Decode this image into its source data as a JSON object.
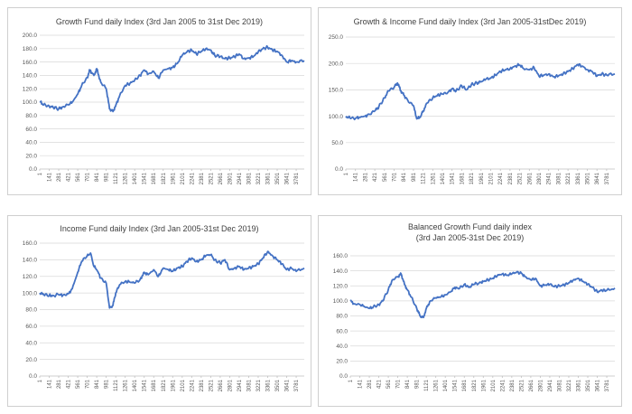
{
  "chart_data": [
    {
      "type": "line",
      "title": "Growth Fund daily Index  (3rd Jan 2005 to 31st Dec 2019)",
      "title_lines": [
        "Growth Fund daily Index  (3rd Jan 2005 to 31st Dec 2019)"
      ],
      "ylim": [
        0,
        200
      ],
      "yticks": [
        "0.0",
        "20.0",
        "40.0",
        "60.0",
        "80.0",
        "100.0",
        "120.0",
        "140.0",
        "160.0",
        "180.0",
        "200.0"
      ],
      "xticks": [
        "1",
        "141",
        "281",
        "421",
        "561",
        "701",
        "841",
        "981",
        "1121",
        "1261",
        "1401",
        "1541",
        "1681",
        "1821",
        "1961",
        "2101",
        "2241",
        "2381",
        "2521",
        "2661",
        "2801",
        "2941",
        "3081",
        "3221",
        "3361",
        "3501",
        "3641",
        "3781"
      ],
      "xlim": [
        1,
        3900
      ],
      "series_color": "#4472c4",
      "x": [
        1,
        60,
        141,
        200,
        281,
        340,
        421,
        480,
        561,
        620,
        701,
        740,
        800,
        841,
        900,
        981,
        1030,
        1080,
        1121,
        1180,
        1261,
        1330,
        1401,
        1480,
        1541,
        1600,
        1681,
        1750,
        1821,
        1900,
        1961,
        2030,
        2101,
        2170,
        2241,
        2310,
        2381,
        2450,
        2521,
        2580,
        2661,
        2730,
        2801,
        2870,
        2941,
        3010,
        3081,
        3150,
        3221,
        3290,
        3361,
        3430,
        3501,
        3570,
        3641,
        3710,
        3781,
        3900
      ],
      "y": [
        101,
        96,
        94,
        92,
        90,
        93,
        96,
        100,
        112,
        125,
        137,
        148,
        140,
        150,
        130,
        120,
        90,
        86,
        95,
        110,
        125,
        128,
        133,
        140,
        148,
        142,
        146,
        136,
        148,
        150,
        152,
        158,
        170,
        175,
        178,
        172,
        176,
        180,
        178,
        170,
        168,
        165,
        166,
        168,
        172,
        165,
        166,
        168,
        175,
        180,
        182,
        178,
        176,
        170,
        160,
        162,
        160,
        162
      ]
    },
    {
      "type": "line",
      "title": "Growth & Income Fund daily Index (3rd Jan 2005-31stDec 2019)",
      "title_lines": [
        "Growth & Income Fund daily Index (3rd Jan 2005-31stDec 2019)"
      ],
      "ylim": [
        0,
        250
      ],
      "yticks": [
        "0.0",
        "50.0",
        "100.0",
        "150.0",
        "200.0",
        "250.0"
      ],
      "xticks": [
        "1",
        "141",
        "281",
        "421",
        "561",
        "701",
        "841",
        "981",
        "1121",
        "1261",
        "1401",
        "1541",
        "1681",
        "1821",
        "1961",
        "2101",
        "2241",
        "2381",
        "2521",
        "2661",
        "2801",
        "2941",
        "3081",
        "3221",
        "3361",
        "3501",
        "3641",
        "3781"
      ],
      "xlim": [
        1,
        3900
      ],
      "series_color": "#4472c4",
      "x": [
        1,
        60,
        141,
        200,
        281,
        340,
        421,
        480,
        561,
        620,
        701,
        750,
        800,
        841,
        900,
        981,
        1030,
        1080,
        1121,
        1180,
        1261,
        1330,
        1401,
        1480,
        1541,
        1600,
        1681,
        1750,
        1821,
        1900,
        1961,
        2030,
        2101,
        2170,
        2241,
        2310,
        2381,
        2450,
        2521,
        2580,
        2661,
        2730,
        2801,
        2870,
        2941,
        3010,
        3081,
        3150,
        3221,
        3290,
        3361,
        3430,
        3501,
        3570,
        3641,
        3710,
        3781,
        3900
      ],
      "y": [
        100,
        97,
        96,
        98,
        100,
        104,
        110,
        118,
        135,
        148,
        155,
        163,
        148,
        140,
        130,
        120,
        95,
        98,
        110,
        125,
        135,
        140,
        142,
        145,
        152,
        148,
        158,
        150,
        160,
        163,
        165,
        170,
        172,
        178,
        185,
        188,
        190,
        195,
        197,
        190,
        188,
        192,
        176,
        178,
        180,
        175,
        176,
        180,
        185,
        190,
        198,
        195,
        188,
        185,
        176,
        180,
        178,
        180
      ]
    },
    {
      "type": "line",
      "title": "Income Fund daily Index (3rd Jan 2005-31st Dec 2019)",
      "title_lines": [
        "Income Fund daily Index (3rd Jan 2005-31st Dec 2019)"
      ],
      "ylim": [
        0,
        160
      ],
      "yticks": [
        "0.0",
        "20.0",
        "40.0",
        "60.0",
        "80.0",
        "100.0",
        "120.0",
        "140.0",
        "160.0"
      ],
      "xticks": [
        "1",
        "141",
        "281",
        "421",
        "561",
        "701",
        "841",
        "981",
        "1121",
        "1261",
        "1401",
        "1541",
        "1681",
        "1821",
        "1961",
        "2101",
        "2241",
        "2381",
        "2521",
        "2661",
        "2801",
        "2941",
        "3081",
        "3221",
        "3361",
        "3501",
        "3641",
        "3781"
      ],
      "xlim": [
        1,
        3900
      ],
      "series_color": "#4472c4",
      "x": [
        1,
        60,
        141,
        200,
        281,
        340,
        421,
        480,
        561,
        620,
        701,
        750,
        800,
        841,
        900,
        981,
        1030,
        1080,
        1121,
        1180,
        1261,
        1330,
        1401,
        1480,
        1541,
        1600,
        1681,
        1750,
        1821,
        1900,
        1961,
        2030,
        2101,
        2170,
        2241,
        2310,
        2381,
        2450,
        2521,
        2580,
        2661,
        2730,
        2801,
        2870,
        2941,
        3010,
        3081,
        3150,
        3221,
        3290,
        3361,
        3430,
        3501,
        3570,
        3641,
        3710,
        3781,
        3900
      ],
      "y": [
        100,
        98,
        97,
        97,
        98,
        97,
        99,
        105,
        125,
        138,
        145,
        148,
        132,
        128,
        118,
        112,
        82,
        85,
        100,
        110,
        114,
        113,
        112,
        116,
        125,
        122,
        128,
        120,
        130,
        128,
        126,
        130,
        132,
        138,
        142,
        138,
        140,
        145,
        146,
        140,
        136,
        140,
        128,
        130,
        132,
        128,
        130,
        132,
        135,
        142,
        150,
        145,
        140,
        135,
        128,
        130,
        126,
        130
      ]
    },
    {
      "type": "line",
      "title": "Balanced Growth Fund daily index (3rd Jan 2005-31st Dec 2019)",
      "title_lines": [
        "Balanced Growth Fund daily index",
        "(3rd Jan 2005-31st Dec 2019)"
      ],
      "ylim": [
        0,
        160
      ],
      "yticks": [
        "0.0",
        "20.0",
        "40.0",
        "60.0",
        "80.0",
        "100.0",
        "120.0",
        "140.0",
        "160.0"
      ],
      "xticks": [
        "1",
        "141",
        "281",
        "421",
        "561",
        "701",
        "841",
        "981",
        "1121",
        "1261",
        "1401",
        "1541",
        "1681",
        "1821",
        "1961",
        "2101",
        "2241",
        "2381",
        "2521",
        "2661",
        "2801",
        "2941",
        "3081",
        "3221",
        "3361",
        "3501",
        "3641",
        "3781"
      ],
      "xlim": [
        1,
        3900
      ],
      "series_color": "#4472c4",
      "x": [
        1,
        60,
        141,
        200,
        281,
        340,
        421,
        480,
        561,
        620,
        701,
        750,
        800,
        841,
        900,
        981,
        1030,
        1080,
        1121,
        1180,
        1261,
        1330,
        1401,
        1480,
        1541,
        1600,
        1681,
        1750,
        1821,
        1900,
        1961,
        2030,
        2101,
        2170,
        2241,
        2310,
        2381,
        2450,
        2521,
        2580,
        2661,
        2730,
        2801,
        2870,
        2941,
        3010,
        3081,
        3150,
        3221,
        3290,
        3361,
        3430,
        3501,
        3570,
        3641,
        3710,
        3781,
        3900
      ],
      "y": [
        100,
        96,
        95,
        93,
        90,
        92,
        95,
        100,
        115,
        128,
        132,
        136,
        122,
        115,
        105,
        90,
        80,
        78,
        90,
        100,
        104,
        105,
        108,
        112,
        118,
        116,
        122,
        118,
        122,
        124,
        126,
        128,
        130,
        134,
        136,
        134,
        136,
        138,
        137,
        132,
        128,
        130,
        120,
        121,
        122,
        119,
        120,
        121,
        124,
        128,
        130,
        126,
        122,
        118,
        112,
        114,
        114,
        117
      ]
    }
  ]
}
